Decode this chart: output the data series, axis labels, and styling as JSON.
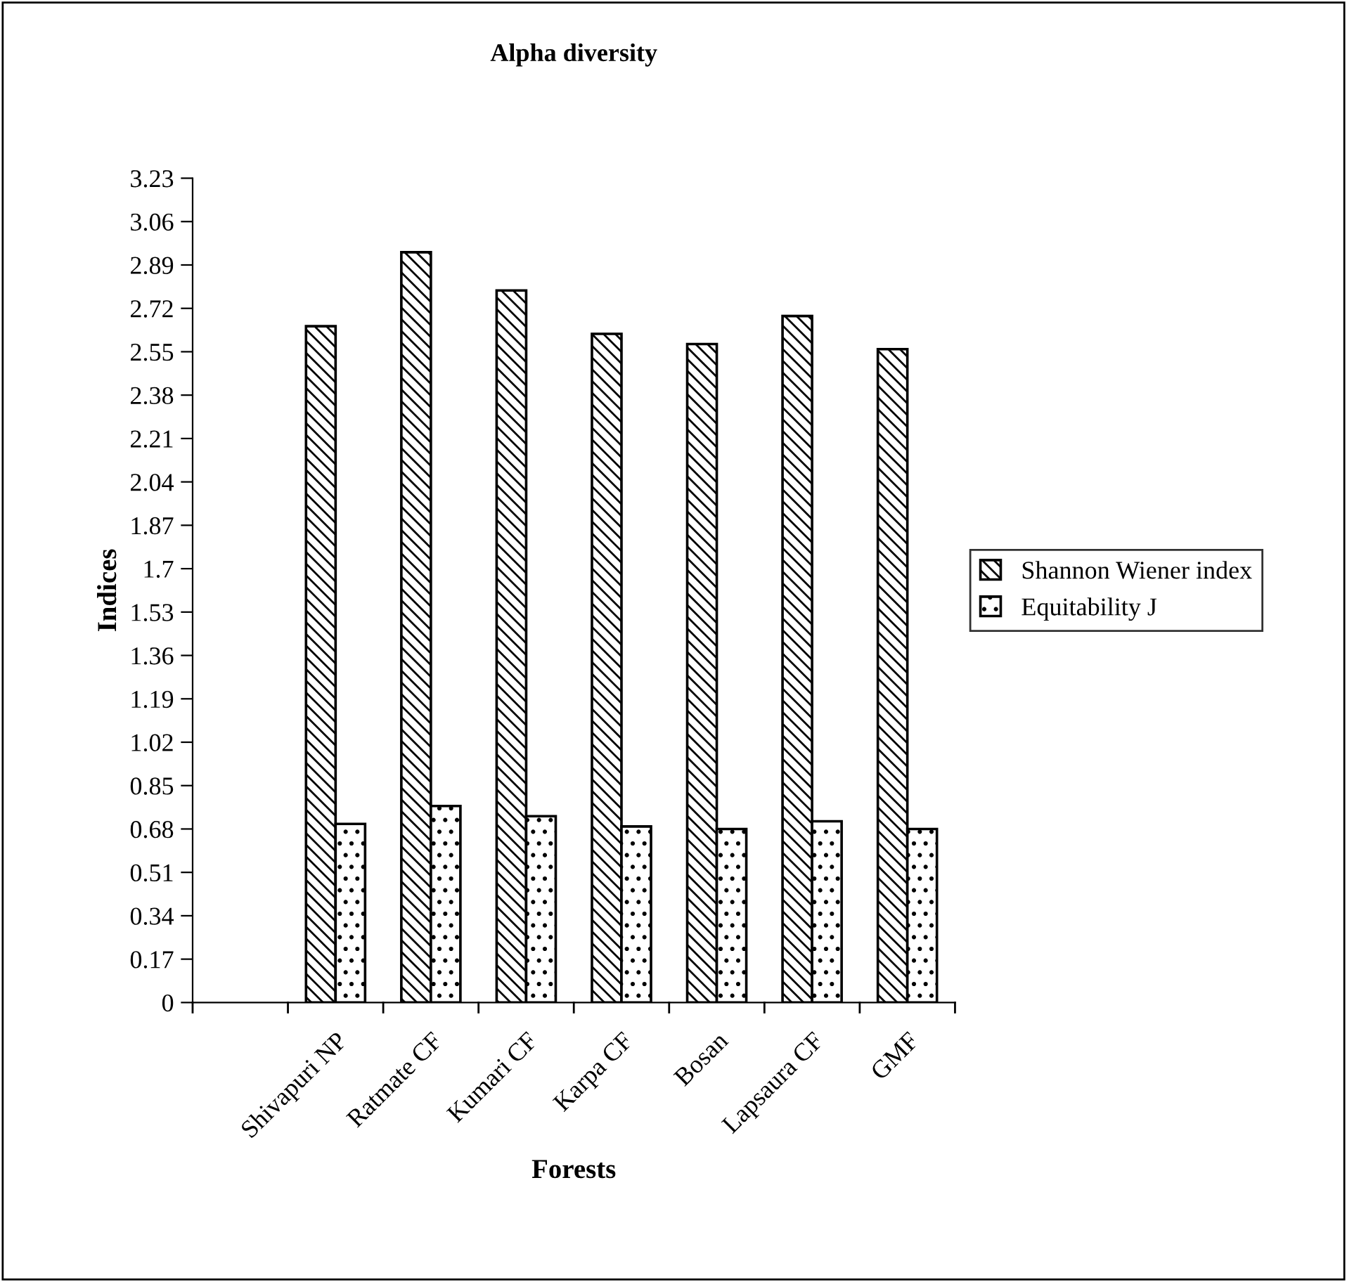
{
  "chart_data": {
    "type": "bar",
    "title": "Alpha diversity",
    "xlabel": "Forests",
    "ylabel": "Indices",
    "categories": [
      null,
      "Shivapuri NP",
      "Ratmate CF",
      "Kumari CF",
      "Karpa CF",
      "Bosan",
      "Lapsaura CF",
      "GMF"
    ],
    "series": [
      {
        "name": "Shannon Wiener index",
        "color": "#000000",
        "values": [
          null,
          2.65,
          2.94,
          2.79,
          2.62,
          2.58,
          2.69,
          2.56
        ]
      },
      {
        "name": "Equitability J",
        "color": "#000000",
        "values": [
          null,
          0.7,
          0.77,
          0.73,
          0.69,
          0.68,
          0.71,
          0.68
        ]
      }
    ],
    "ylim": [
      0,
      3.23
    ],
    "yticks": [
      0,
      0.17,
      0.34,
      0.51,
      0.68,
      0.85,
      1.02,
      1.19,
      1.36,
      1.53,
      1.7,
      1.87,
      2.04,
      2.21,
      2.38,
      2.55,
      2.72,
      2.89,
      3.06,
      3.23
    ],
    "grid": false,
    "legend": "right"
  }
}
